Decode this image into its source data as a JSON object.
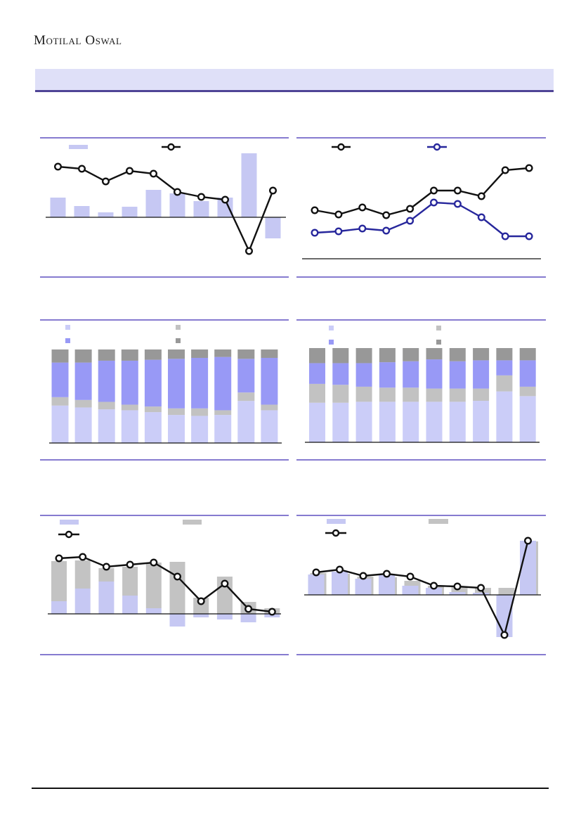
{
  "brand": {
    "logo_text": "Motilal Oswal"
  },
  "banner": {
    "text": ""
  },
  "palette": {
    "rule_purple": "#7568c9",
    "banner_bg": "#dfe0f8",
    "banner_border": "#4f4496",
    "bar_lavender": "#c6c8f3",
    "bar_gray": "#c3c3c3",
    "stack_lavender": "#cbcdf8",
    "stack_light_gray": "#c2c2c2",
    "stack_purple": "#9899f6",
    "stack_dark_gray": "#989898",
    "line_black": "#111111",
    "line_navy": "#27279c",
    "axis_black": "#111111"
  },
  "charts": [
    {
      "id": "combo-bar-line-top-left",
      "chart_data": {
        "type": "bar",
        "subtype": "bar-with-line-overlay",
        "x_labels_visible": false,
        "legend_position": "top",
        "legend": [
          "lavender-bar",
          "black-line"
        ],
        "bars": [
          28,
          16,
          7,
          15,
          39,
          34,
          23,
          28,
          91,
          -30
        ],
        "line": [
          72,
          69,
          51,
          66,
          62,
          36,
          29,
          25,
          -48,
          38
        ],
        "baseline": 0
      }
    },
    {
      "id": "dual-line-top-right",
      "chart_data": {
        "type": "line",
        "x_labels_visible": false,
        "legend_position": "top",
        "legend": [
          "black-line",
          "navy-line"
        ],
        "series": [
          {
            "key": "black",
            "values": [
              69,
              63,
              73,
              62,
              71,
              97,
              97,
              89,
              126,
              129
            ]
          },
          {
            "key": "navy",
            "values": [
              37,
              39,
              43,
              40,
              54,
              80,
              78,
              59,
              32,
              32
            ]
          }
        ],
        "baseline": 0
      }
    },
    {
      "id": "stacked-100-middle-left",
      "chart_data": {
        "type": "bar",
        "subtype": "stacked-100-percent",
        "x_labels_visible": false,
        "legend_position": "top",
        "legend": [
          "lavender",
          "light-gray",
          "purple",
          "dark-gray"
        ],
        "segment_order_bottom_to_top": [
          "lavender",
          "light-gray",
          "purple",
          "dark-gray"
        ],
        "values_percent": [
          [
            40,
            9,
            37,
            14
          ],
          [
            38,
            8,
            40,
            14
          ],
          [
            36,
            8,
            44,
            12
          ],
          [
            35,
            6,
            47,
            12
          ],
          [
            33,
            6,
            50,
            11
          ],
          [
            30,
            7,
            53,
            10
          ],
          [
            29,
            8,
            54,
            9
          ],
          [
            30,
            5,
            57,
            8
          ],
          [
            45,
            9,
            36,
            10
          ],
          [
            35,
            6,
            50,
            9
          ]
        ]
      }
    },
    {
      "id": "stacked-100-middle-right",
      "chart_data": {
        "type": "bar",
        "subtype": "stacked-100-percent",
        "x_labels_visible": false,
        "legend_position": "top",
        "legend": [
          "lavender",
          "light-gray",
          "purple",
          "dark-gray"
        ],
        "segment_order_bottom_to_top": [
          "lavender",
          "light-gray",
          "purple",
          "dark-gray"
        ],
        "values_percent": [
          [
            42,
            20,
            22,
            16
          ],
          [
            42,
            19,
            23,
            16
          ],
          [
            43,
            16,
            25,
            16
          ],
          [
            43,
            15,
            27,
            15
          ],
          [
            43,
            15,
            28,
            14
          ],
          [
            43,
            14,
            31,
            12
          ],
          [
            43,
            14,
            29,
            14
          ],
          [
            44,
            13,
            30,
            13
          ],
          [
            54,
            17,
            16,
            13
          ],
          [
            49,
            10,
            28,
            13
          ]
        ]
      }
    },
    {
      "id": "stacked-bar-line-bottom-left",
      "chart_data": {
        "type": "bar",
        "subtype": "stacked-two-series-with-line",
        "x_labels_visible": false,
        "legend_position": "top",
        "legend": [
          "lavender-bar",
          "gray-bar",
          "black-line"
        ],
        "purple": [
          18,
          36,
          46,
          26,
          8,
          -18,
          -5,
          -8,
          -12,
          -5
        ],
        "gray": [
          57,
          40,
          19,
          41,
          65,
          74,
          23,
          53,
          17,
          8
        ],
        "line": [
          79,
          81,
          67,
          70,
          73,
          53,
          18,
          43,
          7,
          3
        ],
        "baseline": 0
      }
    },
    {
      "id": "overlap-bar-line-bottom-right",
      "chart_data": {
        "type": "bar",
        "subtype": "overlapping-two-series-with-line",
        "x_labels_visible": false,
        "legend_position": "top",
        "legend": [
          "lavender-bar",
          "gray-bar",
          "black-line"
        ],
        "purple": [
          29,
          33,
          23,
          28,
          13,
          10,
          4,
          3,
          -60,
          77
        ],
        "gray": [
          31,
          30,
          26,
          25,
          20,
          13,
          11,
          10,
          10,
          76
        ],
        "line": [
          32,
          36,
          27,
          30,
          26,
          13,
          12,
          10,
          -57,
          77
        ],
        "baseline": 0
      }
    }
  ],
  "footer": {
    "text": ""
  }
}
